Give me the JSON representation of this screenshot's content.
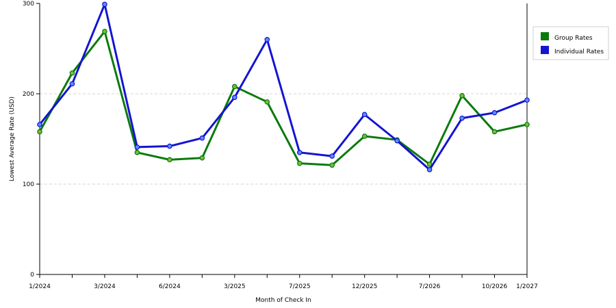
{
  "chart_data": {
    "type": "line",
    "xlabel": "Month of Check In",
    "ylabel": "Lowest Average Rate (USD)",
    "ylim": [
      0,
      300
    ],
    "yticks": [
      0,
      100,
      200,
      300
    ],
    "grid": "horizontal dashed at y=100 and y=200",
    "legend_position": "top-right",
    "x": [
      "1/2024",
      "",
      "3/2024",
      "",
      "6/2024",
      "",
      "3/2025",
      "",
      "7/2025",
      "",
      "12/2025",
      "",
      "7/2026",
      "",
      "10/2026",
      "1/2027"
    ],
    "series": [
      {
        "name": "Group Rates",
        "color": "#0b7a0b",
        "values": [
          158,
          223,
          269,
          135,
          127,
          129,
          208,
          191,
          123,
          121,
          153,
          149,
          122,
          198,
          158,
          166
        ]
      },
      {
        "name": "Individual Rates",
        "color": "#1414d2",
        "values": [
          166,
          211,
          299,
          141,
          142,
          151,
          196,
          260,
          135,
          131,
          177,
          148,
          116,
          173,
          179,
          193
        ]
      }
    ]
  }
}
